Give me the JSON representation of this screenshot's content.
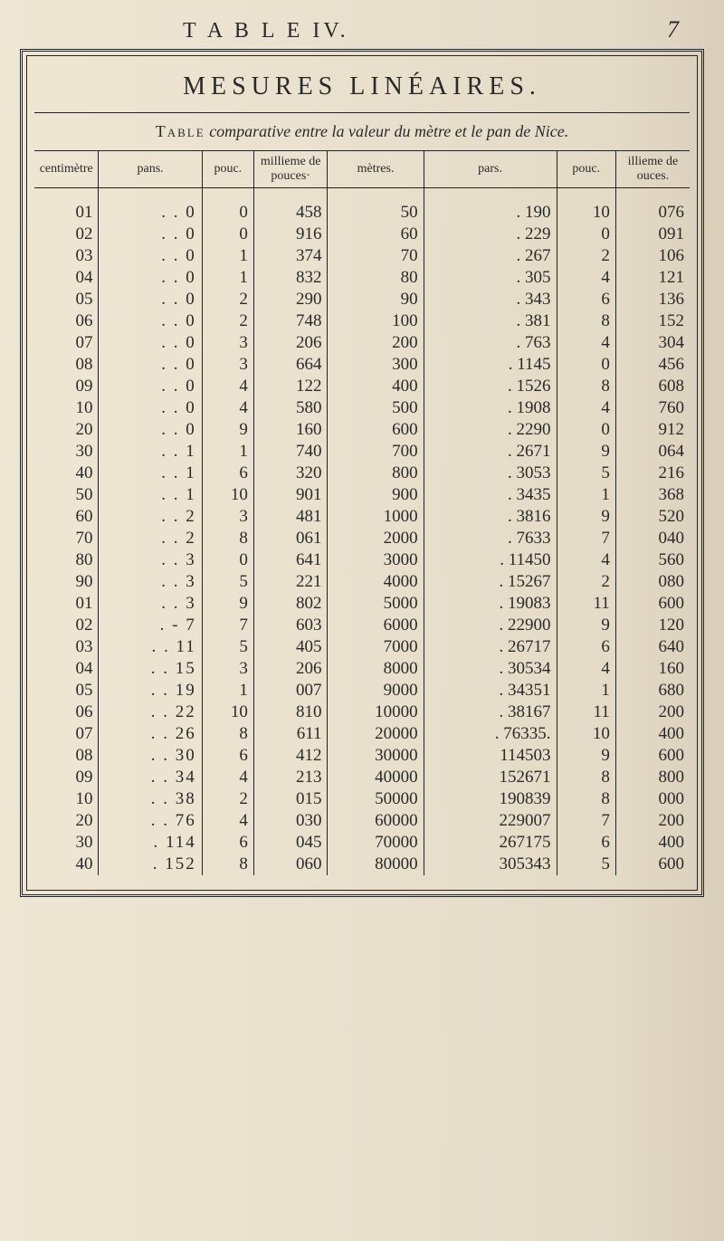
{
  "running_title": "T A B L E  IV.",
  "page_number": "7",
  "title": "MESURES LINÉAIRES.",
  "subtitle_lead": "Table",
  "subtitle_rest": " comparative entre la valeur du mètre et le pan de Nice.",
  "headers": {
    "centimetre": "centimètre",
    "pans": "pans.",
    "pouc": "pouc.",
    "millieme": "millieme de pouces·",
    "metres": "mètres.",
    "pars": "pars.",
    "pouc2": "pouc.",
    "millieme2": "illieme de ouces."
  },
  "rows": [
    {
      "cm": "01",
      "pans": ". . 0",
      "pouc": "0",
      "mp": "458",
      "met": "50",
      "pars": ". 190",
      "pouc2": "10",
      "mp2": "076"
    },
    {
      "cm": "02",
      "pans": ". . 0",
      "pouc": "0",
      "mp": "916",
      "met": "60",
      "pars": ". 229",
      "pouc2": "0",
      "mp2": "091"
    },
    {
      "cm": "03",
      "pans": ". . 0",
      "pouc": "1",
      "mp": "374",
      "met": "70",
      "pars": ". 267",
      "pouc2": "2",
      "mp2": "106"
    },
    {
      "cm": "04",
      "pans": ". . 0",
      "pouc": "1",
      "mp": "832",
      "met": "80",
      "pars": ". 305",
      "pouc2": "4",
      "mp2": "121"
    },
    {
      "cm": "05",
      "pans": ". . 0",
      "pouc": "2",
      "mp": "290",
      "met": "90",
      "pars": ". 343",
      "pouc2": "6",
      "mp2": "136"
    },
    {
      "cm": "06",
      "pans": ". . 0",
      "pouc": "2",
      "mp": "748",
      "met": "100",
      "pars": ". 381",
      "pouc2": "8",
      "mp2": "152"
    },
    {
      "cm": "07",
      "pans": ". . 0",
      "pouc": "3",
      "mp": "206",
      "met": "200",
      "pars": ". 763",
      "pouc2": "4",
      "mp2": "304"
    },
    {
      "cm": "08",
      "pans": ". . 0",
      "pouc": "3",
      "mp": "664",
      "met": "300",
      "pars": ". 1145",
      "pouc2": "0",
      "mp2": "456"
    },
    {
      "cm": "09",
      "pans": ". . 0",
      "pouc": "4",
      "mp": "122",
      "met": "400",
      "pars": ". 1526",
      "pouc2": "8",
      "mp2": "608"
    },
    {
      "cm": "10",
      "pans": ". . 0",
      "pouc": "4",
      "mp": "580",
      "met": "500",
      "pars": ". 1908",
      "pouc2": "4",
      "mp2": "760"
    },
    {
      "cm": "20",
      "pans": ". . 0",
      "pouc": "9",
      "mp": "160",
      "met": "600",
      "pars": ". 2290",
      "pouc2": "0",
      "mp2": "912"
    },
    {
      "cm": "30",
      "pans": ". . 1",
      "pouc": "1",
      "mp": "740",
      "met": "700",
      "pars": ". 2671",
      "pouc2": "9",
      "mp2": "064"
    },
    {
      "cm": "40",
      "pans": ". . 1",
      "pouc": "6",
      "mp": "320",
      "met": "800",
      "pars": ". 3053",
      "pouc2": "5",
      "mp2": "216"
    },
    {
      "cm": "50",
      "pans": ". . 1",
      "pouc": "10",
      "mp": "901",
      "met": "900",
      "pars": ". 3435",
      "pouc2": "1",
      "mp2": "368"
    },
    {
      "cm": "60",
      "pans": ". . 2",
      "pouc": "3",
      "mp": "481",
      "met": "1000",
      "pars": ". 3816",
      "pouc2": "9",
      "mp2": "520"
    },
    {
      "cm": "70",
      "pans": ". . 2",
      "pouc": "8",
      "mp": "061",
      "met": "2000",
      "pars": ". 7633",
      "pouc2": "7",
      "mp2": "040"
    },
    {
      "cm": "80",
      "pans": ". . 3",
      "pouc": "0",
      "mp": "641",
      "met": "3000",
      "pars": ". 11450",
      "pouc2": "4",
      "mp2": "560"
    },
    {
      "cm": "90",
      "pans": ". . 3",
      "pouc": "5",
      "mp": "221",
      "met": "4000",
      "pars": ". 15267",
      "pouc2": "2",
      "mp2": "080"
    },
    {
      "cm": "01",
      "pans": ". . 3",
      "pouc": "9",
      "mp": "802",
      "met": "5000",
      "pars": ". 19083",
      "pouc2": "11",
      "mp2": "600"
    },
    {
      "cm": "02",
      "pans": ". - 7",
      "pouc": "7",
      "mp": "603",
      "met": "6000",
      "pars": ". 22900",
      "pouc2": "9",
      "mp2": "120"
    },
    {
      "cm": "03",
      "pans": ". . 11",
      "pouc": "5",
      "mp": "405",
      "met": "7000",
      "pars": ". 26717",
      "pouc2": "6",
      "mp2": "640"
    },
    {
      "cm": "04",
      "pans": ". . 15",
      "pouc": "3",
      "mp": "206",
      "met": "8000",
      "pars": ". 30534",
      "pouc2": "4",
      "mp2": "160"
    },
    {
      "cm": "05",
      "pans": ". . 19",
      "pouc": "1",
      "mp": "007",
      "met": "9000",
      "pars": ". 34351",
      "pouc2": "1",
      "mp2": "680"
    },
    {
      "cm": "06",
      "pans": ". . 22",
      "pouc": "10",
      "mp": "810",
      "met": "10000",
      "pars": ". 38167",
      "pouc2": "11",
      "mp2": "200"
    },
    {
      "cm": "07",
      "pans": ". . 26",
      "pouc": "8",
      "mp": "611",
      "met": "20000",
      "pars": ". 76335.",
      "pouc2": "10",
      "mp2": "400"
    },
    {
      "cm": "08",
      "pans": ". . 30",
      "pouc": "6",
      "mp": "412",
      "met": "30000",
      "pars": "114503",
      "pouc2": "9",
      "mp2": "600"
    },
    {
      "cm": "09",
      "pans": ". . 34",
      "pouc": "4",
      "mp": "213",
      "met": "40000",
      "pars": "152671",
      "pouc2": "8",
      "mp2": "800"
    },
    {
      "cm": "10",
      "pans": ". . 38",
      "pouc": "2",
      "mp": "015",
      "met": "50000",
      "pars": "190839",
      "pouc2": "8",
      "mp2": "000"
    },
    {
      "cm": "20",
      "pans": ". . 76",
      "pouc": "4",
      "mp": "030",
      "met": "60000",
      "pars": "229007",
      "pouc2": "7",
      "mp2": "200"
    },
    {
      "cm": "30",
      "pans": ".  114",
      "pouc": "6",
      "mp": "045",
      "met": "70000",
      "pars": "267175",
      "pouc2": "6",
      "mp2": "400"
    },
    {
      "cm": "40",
      "pans": ".  152",
      "pouc": "8",
      "mp": "060",
      "met": "80000",
      "pars": "305343",
      "pouc2": "5",
      "mp2": "600"
    }
  ]
}
